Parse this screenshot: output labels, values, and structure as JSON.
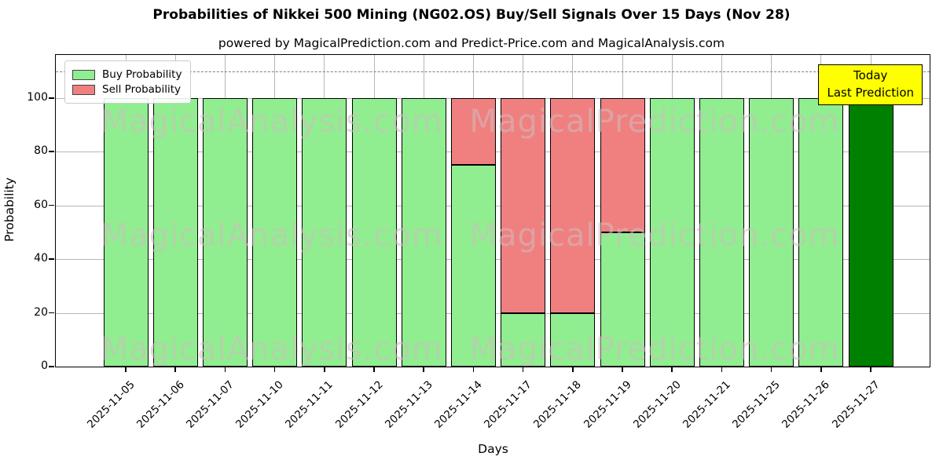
{
  "title": "Probabilities of Nikkei 500 Mining (NG02.OS) Buy/Sell Signals Over 15 Days (Nov 28)",
  "subtitle": "powered by MagicalPrediction.com and Predict-Price.com and MagicalAnalysis.com",
  "axes": {
    "ylabel": "Probability",
    "xlabel": "Days"
  },
  "legend": {
    "items": [
      {
        "label": "Buy Probability",
        "color": "#90EE90"
      },
      {
        "label": "Sell Probability",
        "color": "#F08080"
      }
    ]
  },
  "annotation_box": {
    "lines": [
      "Today",
      "Last Prediction"
    ],
    "bg": "#FFFF00"
  },
  "watermarks": {
    "text_left": "MagicalAnalysis.com",
    "text_right": "MagicalPrediction.com",
    "rows": 3
  },
  "chart_data": {
    "type": "bar",
    "stacked": true,
    "title": "Probabilities of Nikkei 500 Mining (NG02.OS) Buy/Sell Signals Over 15 Days (Nov 28)",
    "xlabel": "Days",
    "ylabel": "Probability",
    "categories": [
      "2025-11-05",
      "2025-11-06",
      "2025-11-07",
      "2025-11-10",
      "2025-11-11",
      "2025-11-12",
      "2025-11-13",
      "2025-11-14",
      "2025-11-17",
      "2025-11-18",
      "2025-11-19",
      "2025-11-20",
      "2025-11-21",
      "2025-11-25",
      "2025-11-26",
      "2025-11-27"
    ],
    "series": [
      {
        "name": "Buy Probability",
        "color": "#90EE90",
        "values": [
          100,
          100,
          100,
          100,
          100,
          100,
          100,
          75,
          20,
          20,
          50,
          100,
          100,
          100,
          100,
          100
        ]
      },
      {
        "name": "Sell Probability",
        "color": "#F08080",
        "values": [
          0,
          0,
          0,
          0,
          0,
          0,
          0,
          25,
          80,
          80,
          50,
          0,
          0,
          0,
          0,
          0
        ]
      }
    ],
    "today_bar": {
      "index": 15,
      "color": "#008000",
      "note": "Today Last Prediction"
    },
    "yticks": [
      0,
      20,
      40,
      60,
      80,
      100
    ],
    "ylim": [
      0,
      116
    ],
    "dashed_line_y": 110,
    "grid": true,
    "legend_position": "upper left",
    "colors": {
      "grid": "#b6b6b6",
      "dashed_line": "#7f7f7f",
      "bar_edge": "#000000"
    }
  }
}
